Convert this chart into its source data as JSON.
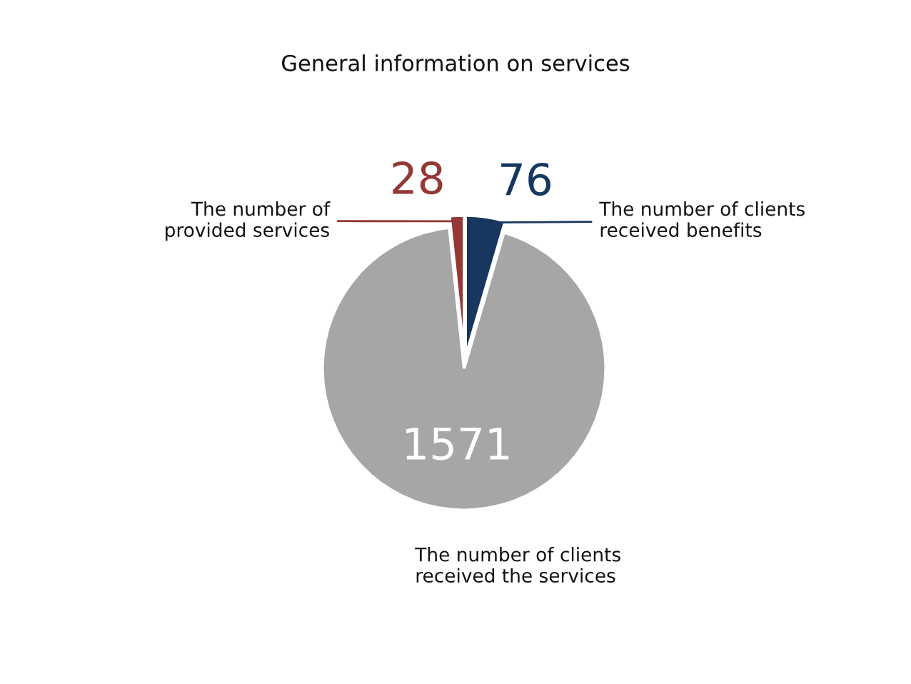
{
  "chart_data": {
    "type": "pie",
    "title": "General information on services",
    "categories": [
      "The number of clients\nreceived benefits",
      "The number of clients\nreceived the services",
      "The number of\nprovided services"
    ],
    "values": [
      76,
      1571,
      28
    ],
    "colors": [
      "#17375e",
      "#a6a6a6",
      "#953735"
    ],
    "data_labels": true
  }
}
